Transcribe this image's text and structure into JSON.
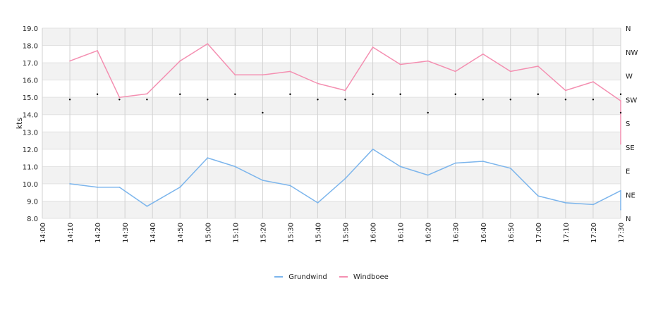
{
  "chart_data": {
    "type": "line",
    "ylabel": "kts",
    "ylim": [
      8.0,
      19.0
    ],
    "y_ticks": [
      "8.0",
      "9.0",
      "10.0",
      "11.0",
      "12.0",
      "13.0",
      "14.0",
      "15.0",
      "16.0",
      "17.0",
      "18.0",
      "19.0"
    ],
    "right_axis_labels": [
      "N",
      "NE",
      "E",
      "SE",
      "S",
      "SW",
      "W",
      "NW",
      "N"
    ],
    "x_ticks": [
      "14:00",
      "14:10",
      "14:20",
      "14:30",
      "14:40",
      "14:50",
      "15:00",
      "15:10",
      "15:20",
      "15:30",
      "15:40",
      "15:50",
      "16:00",
      "16:10",
      "16:20",
      "16:30",
      "16:40",
      "16:50",
      "17:00",
      "17:10",
      "17:20",
      "17:30"
    ],
    "series": [
      {
        "name": "Grundwind",
        "color": "#7cb5ec",
        "points": [
          [
            "14:10",
            10.0
          ],
          [
            "14:20",
            9.8
          ],
          [
            "14:28",
            9.8
          ],
          [
            "14:38",
            8.7
          ],
          [
            "14:50",
            9.8
          ],
          [
            "15:00",
            11.5
          ],
          [
            "15:10",
            11.0
          ],
          [
            "15:20",
            10.2
          ],
          [
            "15:30",
            9.9
          ],
          [
            "15:40",
            8.9
          ],
          [
            "15:50",
            10.3
          ],
          [
            "16:00",
            12.0
          ],
          [
            "16:10",
            11.0
          ],
          [
            "16:20",
            10.5
          ],
          [
            "16:30",
            11.2
          ],
          [
            "16:40",
            11.3
          ],
          [
            "16:50",
            10.9
          ],
          [
            "17:00",
            9.3
          ],
          [
            "17:10",
            8.9
          ],
          [
            "17:20",
            8.8
          ],
          [
            "17:30",
            9.6
          ],
          [
            "17:30",
            8.5
          ]
        ]
      },
      {
        "name": "Windboee",
        "color": "#f48fb1",
        "points": [
          [
            "14:10",
            17.1
          ],
          [
            "14:20",
            17.7
          ],
          [
            "14:28",
            15.0
          ],
          [
            "14:38",
            15.2
          ],
          [
            "14:50",
            17.1
          ],
          [
            "15:00",
            18.1
          ],
          [
            "15:10",
            16.3
          ],
          [
            "15:20",
            16.3
          ],
          [
            "15:30",
            16.5
          ],
          [
            "15:40",
            15.8
          ],
          [
            "15:50",
            15.4
          ],
          [
            "16:00",
            17.9
          ],
          [
            "16:10",
            16.9
          ],
          [
            "16:20",
            17.1
          ],
          [
            "16:30",
            16.5
          ],
          [
            "16:40",
            17.5
          ],
          [
            "16:50",
            16.5
          ],
          [
            "17:00",
            16.8
          ],
          [
            "17:10",
            15.4
          ],
          [
            "17:20",
            15.9
          ],
          [
            "17:30",
            14.8
          ],
          [
            "17:30",
            12.3
          ]
        ]
      }
    ],
    "direction_points": [
      [
        "14:10",
        "SW"
      ],
      [
        "14:20",
        "SW"
      ],
      [
        "14:28",
        "SW"
      ],
      [
        "14:38",
        "SW"
      ],
      [
        "14:50",
        "SW"
      ],
      [
        "15:00",
        "SW"
      ],
      [
        "15:10",
        "SW"
      ],
      [
        "15:20",
        "S"
      ],
      [
        "15:30",
        "SW"
      ],
      [
        "15:40",
        "SW"
      ],
      [
        "15:50",
        "SW"
      ],
      [
        "16:00",
        "SW"
      ],
      [
        "16:10",
        "SW"
      ],
      [
        "16:20",
        "S"
      ],
      [
        "16:30",
        "SW"
      ],
      [
        "16:40",
        "SW"
      ],
      [
        "16:50",
        "SW"
      ],
      [
        "17:00",
        "SW"
      ],
      [
        "17:10",
        "SW"
      ],
      [
        "17:20",
        "SW"
      ],
      [
        "17:30",
        "SW"
      ],
      [
        "17:30",
        "S"
      ]
    ],
    "direction_degrees": [
      [
        "14:10",
        225
      ],
      [
        "14:20",
        235
      ],
      [
        "14:28",
        225
      ],
      [
        "14:38",
        225
      ],
      [
        "14:50",
        235
      ],
      [
        "15:00",
        225
      ],
      [
        "15:10",
        235
      ],
      [
        "15:20",
        200
      ],
      [
        "15:30",
        235
      ],
      [
        "15:40",
        225
      ],
      [
        "15:50",
        225
      ],
      [
        "16:00",
        235
      ],
      [
        "16:10",
        235
      ],
      [
        "16:20",
        200
      ],
      [
        "16:30",
        235
      ],
      [
        "16:40",
        225
      ],
      [
        "16:50",
        225
      ],
      [
        "17:00",
        235
      ],
      [
        "17:10",
        225
      ],
      [
        "17:20",
        225
      ],
      [
        "17:30",
        235
      ],
      [
        "17:30",
        200
      ]
    ],
    "grid": true,
    "legend_position": "bottom-center"
  }
}
